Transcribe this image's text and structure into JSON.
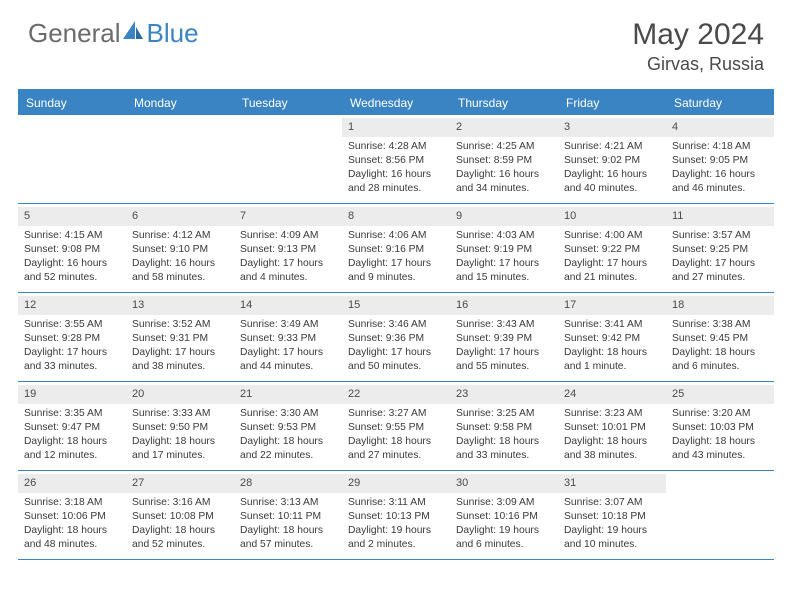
{
  "brand": {
    "part1": "General",
    "part2": "Blue"
  },
  "title": "May 2024",
  "location": "Girvas, Russia",
  "colors": {
    "accent": "#3a84c4",
    "daynum_bg": "#ececec",
    "text": "#3a3a3a",
    "logo_gray": "#6b6b6b"
  },
  "weekdays": [
    "Sunday",
    "Monday",
    "Tuesday",
    "Wednesday",
    "Thursday",
    "Friday",
    "Saturday"
  ],
  "weeks": [
    [
      {
        "blank": true
      },
      {
        "blank": true
      },
      {
        "blank": true
      },
      {
        "num": "1",
        "sunrise": "Sunrise: 4:28 AM",
        "sunset": "Sunset: 8:56 PM",
        "day1": "Daylight: 16 hours",
        "day2": "and 28 minutes."
      },
      {
        "num": "2",
        "sunrise": "Sunrise: 4:25 AM",
        "sunset": "Sunset: 8:59 PM",
        "day1": "Daylight: 16 hours",
        "day2": "and 34 minutes."
      },
      {
        "num": "3",
        "sunrise": "Sunrise: 4:21 AM",
        "sunset": "Sunset: 9:02 PM",
        "day1": "Daylight: 16 hours",
        "day2": "and 40 minutes."
      },
      {
        "num": "4",
        "sunrise": "Sunrise: 4:18 AM",
        "sunset": "Sunset: 9:05 PM",
        "day1": "Daylight: 16 hours",
        "day2": "and 46 minutes."
      }
    ],
    [
      {
        "num": "5",
        "sunrise": "Sunrise: 4:15 AM",
        "sunset": "Sunset: 9:08 PM",
        "day1": "Daylight: 16 hours",
        "day2": "and 52 minutes."
      },
      {
        "num": "6",
        "sunrise": "Sunrise: 4:12 AM",
        "sunset": "Sunset: 9:10 PM",
        "day1": "Daylight: 16 hours",
        "day2": "and 58 minutes."
      },
      {
        "num": "7",
        "sunrise": "Sunrise: 4:09 AM",
        "sunset": "Sunset: 9:13 PM",
        "day1": "Daylight: 17 hours",
        "day2": "and 4 minutes."
      },
      {
        "num": "8",
        "sunrise": "Sunrise: 4:06 AM",
        "sunset": "Sunset: 9:16 PM",
        "day1": "Daylight: 17 hours",
        "day2": "and 9 minutes."
      },
      {
        "num": "9",
        "sunrise": "Sunrise: 4:03 AM",
        "sunset": "Sunset: 9:19 PM",
        "day1": "Daylight: 17 hours",
        "day2": "and 15 minutes."
      },
      {
        "num": "10",
        "sunrise": "Sunrise: 4:00 AM",
        "sunset": "Sunset: 9:22 PM",
        "day1": "Daylight: 17 hours",
        "day2": "and 21 minutes."
      },
      {
        "num": "11",
        "sunrise": "Sunrise: 3:57 AM",
        "sunset": "Sunset: 9:25 PM",
        "day1": "Daylight: 17 hours",
        "day2": "and 27 minutes."
      }
    ],
    [
      {
        "num": "12",
        "sunrise": "Sunrise: 3:55 AM",
        "sunset": "Sunset: 9:28 PM",
        "day1": "Daylight: 17 hours",
        "day2": "and 33 minutes."
      },
      {
        "num": "13",
        "sunrise": "Sunrise: 3:52 AM",
        "sunset": "Sunset: 9:31 PM",
        "day1": "Daylight: 17 hours",
        "day2": "and 38 minutes."
      },
      {
        "num": "14",
        "sunrise": "Sunrise: 3:49 AM",
        "sunset": "Sunset: 9:33 PM",
        "day1": "Daylight: 17 hours",
        "day2": "and 44 minutes."
      },
      {
        "num": "15",
        "sunrise": "Sunrise: 3:46 AM",
        "sunset": "Sunset: 9:36 PM",
        "day1": "Daylight: 17 hours",
        "day2": "and 50 minutes."
      },
      {
        "num": "16",
        "sunrise": "Sunrise: 3:43 AM",
        "sunset": "Sunset: 9:39 PM",
        "day1": "Daylight: 17 hours",
        "day2": "and 55 minutes."
      },
      {
        "num": "17",
        "sunrise": "Sunrise: 3:41 AM",
        "sunset": "Sunset: 9:42 PM",
        "day1": "Daylight: 18 hours",
        "day2": "and 1 minute."
      },
      {
        "num": "18",
        "sunrise": "Sunrise: 3:38 AM",
        "sunset": "Sunset: 9:45 PM",
        "day1": "Daylight: 18 hours",
        "day2": "and 6 minutes."
      }
    ],
    [
      {
        "num": "19",
        "sunrise": "Sunrise: 3:35 AM",
        "sunset": "Sunset: 9:47 PM",
        "day1": "Daylight: 18 hours",
        "day2": "and 12 minutes."
      },
      {
        "num": "20",
        "sunrise": "Sunrise: 3:33 AM",
        "sunset": "Sunset: 9:50 PM",
        "day1": "Daylight: 18 hours",
        "day2": "and 17 minutes."
      },
      {
        "num": "21",
        "sunrise": "Sunrise: 3:30 AM",
        "sunset": "Sunset: 9:53 PM",
        "day1": "Daylight: 18 hours",
        "day2": "and 22 minutes."
      },
      {
        "num": "22",
        "sunrise": "Sunrise: 3:27 AM",
        "sunset": "Sunset: 9:55 PM",
        "day1": "Daylight: 18 hours",
        "day2": "and 27 minutes."
      },
      {
        "num": "23",
        "sunrise": "Sunrise: 3:25 AM",
        "sunset": "Sunset: 9:58 PM",
        "day1": "Daylight: 18 hours",
        "day2": "and 33 minutes."
      },
      {
        "num": "24",
        "sunrise": "Sunrise: 3:23 AM",
        "sunset": "Sunset: 10:01 PM",
        "day1": "Daylight: 18 hours",
        "day2": "and 38 minutes."
      },
      {
        "num": "25",
        "sunrise": "Sunrise: 3:20 AM",
        "sunset": "Sunset: 10:03 PM",
        "day1": "Daylight: 18 hours",
        "day2": "and 43 minutes."
      }
    ],
    [
      {
        "num": "26",
        "sunrise": "Sunrise: 3:18 AM",
        "sunset": "Sunset: 10:06 PM",
        "day1": "Daylight: 18 hours",
        "day2": "and 48 minutes."
      },
      {
        "num": "27",
        "sunrise": "Sunrise: 3:16 AM",
        "sunset": "Sunset: 10:08 PM",
        "day1": "Daylight: 18 hours",
        "day2": "and 52 minutes."
      },
      {
        "num": "28",
        "sunrise": "Sunrise: 3:13 AM",
        "sunset": "Sunset: 10:11 PM",
        "day1": "Daylight: 18 hours",
        "day2": "and 57 minutes."
      },
      {
        "num": "29",
        "sunrise": "Sunrise: 3:11 AM",
        "sunset": "Sunset: 10:13 PM",
        "day1": "Daylight: 19 hours",
        "day2": "and 2 minutes."
      },
      {
        "num": "30",
        "sunrise": "Sunrise: 3:09 AM",
        "sunset": "Sunset: 10:16 PM",
        "day1": "Daylight: 19 hours",
        "day2": "and 6 minutes."
      },
      {
        "num": "31",
        "sunrise": "Sunrise: 3:07 AM",
        "sunset": "Sunset: 10:18 PM",
        "day1": "Daylight: 19 hours",
        "day2": "and 10 minutes."
      },
      {
        "blank": true
      }
    ]
  ]
}
